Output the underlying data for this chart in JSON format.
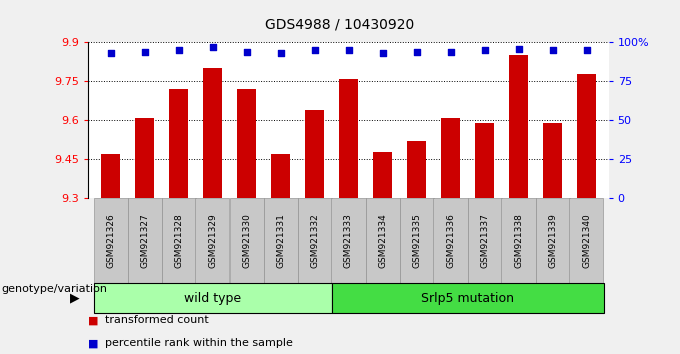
{
  "title": "GDS4988 / 10430920",
  "samples": [
    "GSM921326",
    "GSM921327",
    "GSM921328",
    "GSM921329",
    "GSM921330",
    "GSM921331",
    "GSM921332",
    "GSM921333",
    "GSM921334",
    "GSM921335",
    "GSM921336",
    "GSM921337",
    "GSM921338",
    "GSM921339",
    "GSM921340"
  ],
  "transformed_counts": [
    9.47,
    9.61,
    9.72,
    9.8,
    9.72,
    9.47,
    9.64,
    9.76,
    9.48,
    9.52,
    9.61,
    9.59,
    9.85,
    9.59,
    9.78
  ],
  "percentile_ranks": [
    93,
    94,
    95,
    97,
    94,
    93,
    95,
    95,
    93,
    94,
    94,
    95,
    96,
    95,
    95
  ],
  "ylim_left": [
    9.3,
    9.9
  ],
  "ylim_right": [
    0,
    100
  ],
  "yticks_left": [
    9.3,
    9.45,
    9.6,
    9.75,
    9.9
  ],
  "yticks_right": [
    0,
    25,
    50,
    75,
    100
  ],
  "ytick_labels_right": [
    "0",
    "25",
    "50",
    "75",
    "100%"
  ],
  "bar_color": "#cc0000",
  "dot_color": "#0000cc",
  "group1_label": "wild type",
  "group2_label": "Srlp5 mutation",
  "group1_color": "#aaffaa",
  "group2_color": "#44dd44",
  "group1_n": 7,
  "group2_n": 8,
  "xlabel_group": "genotype/variation",
  "legend_bar_label": "transformed count",
  "legend_dot_label": "percentile rank within the sample",
  "bg_color": "#f0f0f0",
  "plot_bg": "#ffffff",
  "tick_bg": "#c8c8c8"
}
